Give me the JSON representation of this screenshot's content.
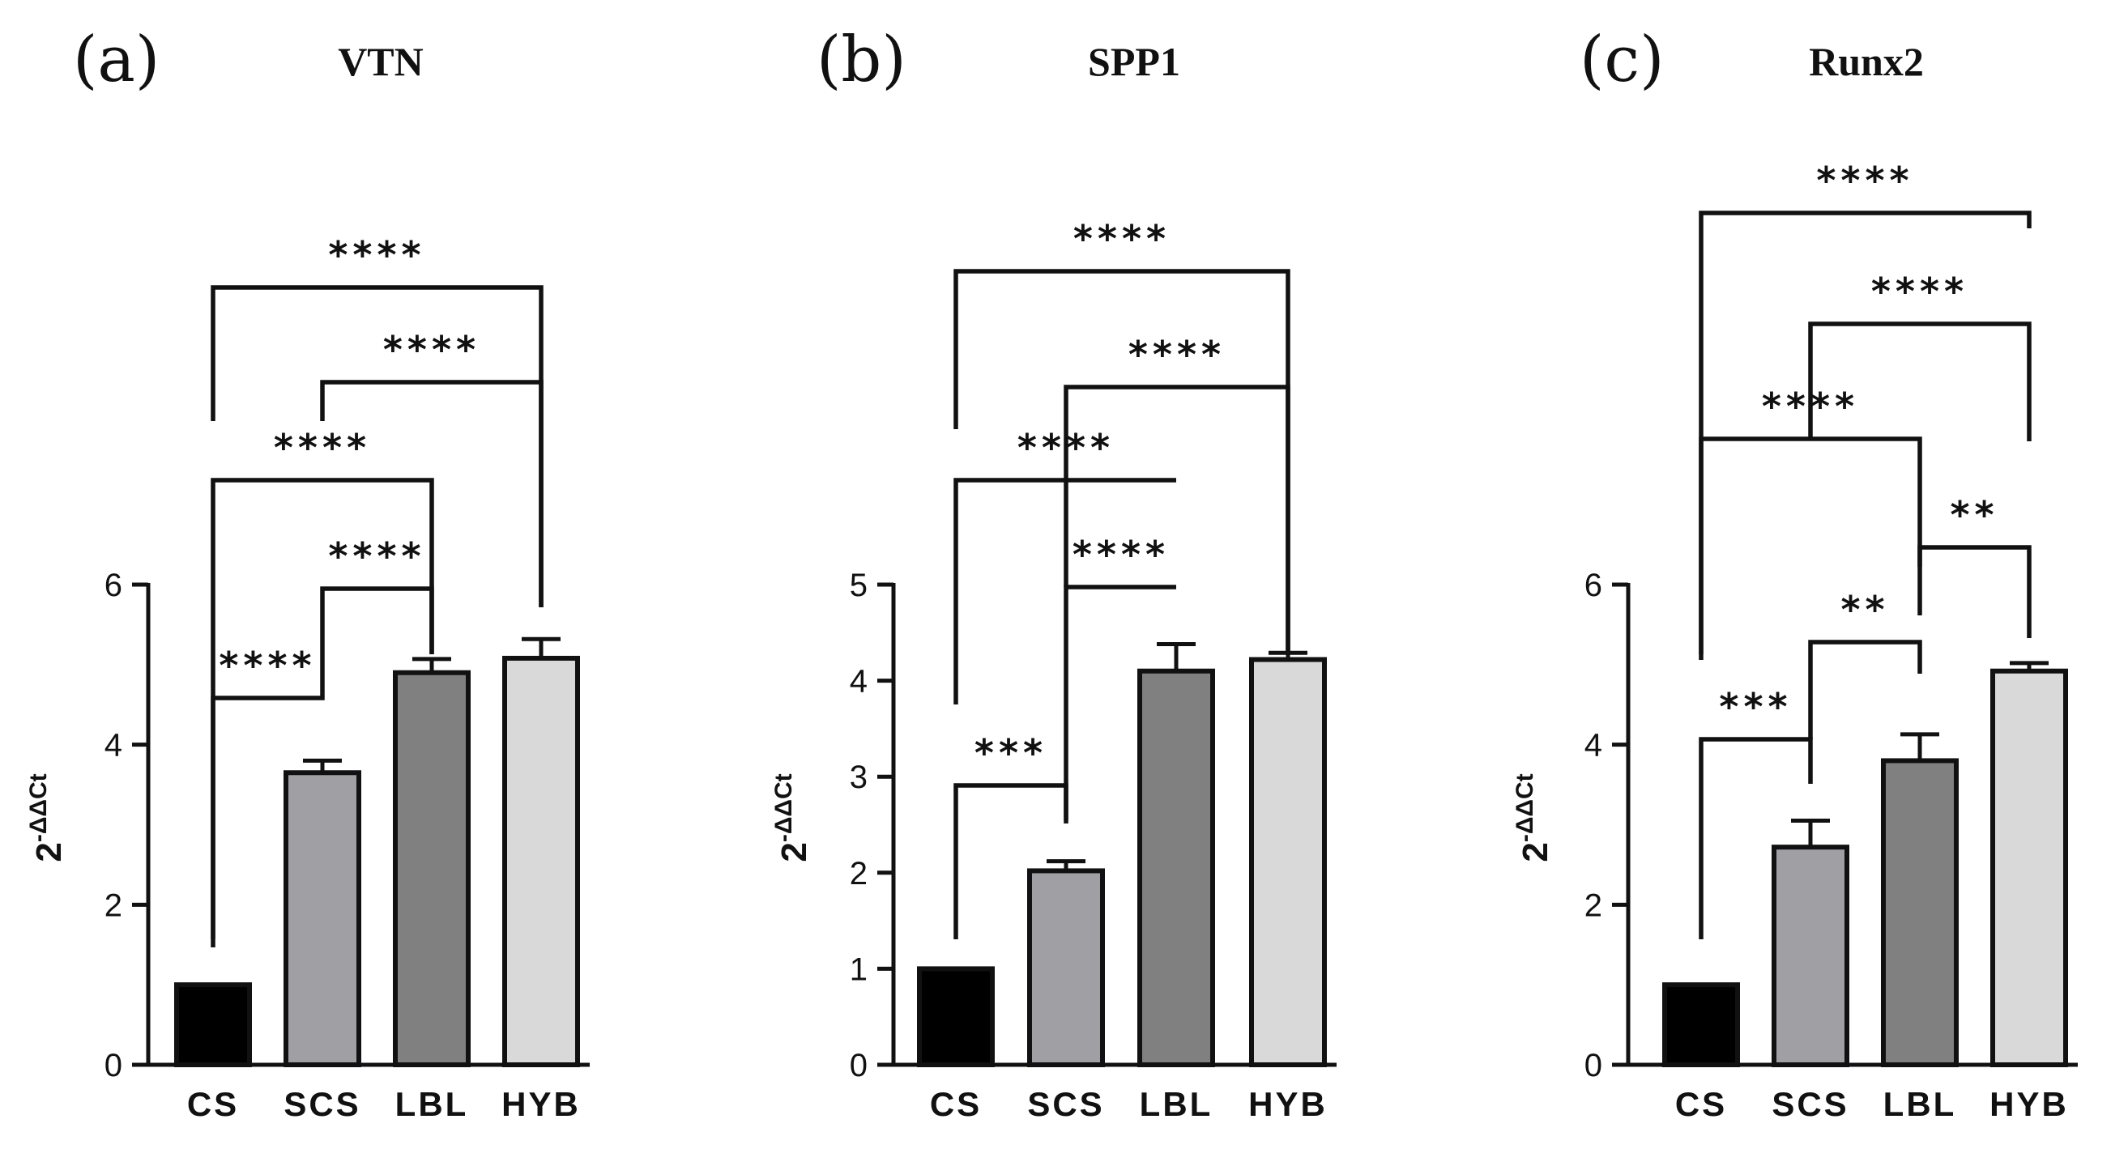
{
  "chart_data": [
    {
      "type": "bar",
      "panel_label": "(a)",
      "title": "VTN",
      "xlabel": "",
      "ylabel": "2-ΔΔCt",
      "ylabel_base": "2",
      "ylabel_exp": "-ΔΔCt",
      "categories": [
        "CS",
        "SCS",
        "LBL",
        "HYB"
      ],
      "values": [
        1.0,
        3.65,
        4.9,
        5.08
      ],
      "errors": [
        0,
        0.15,
        0.17,
        0.24
      ],
      "colors": [
        "#000000",
        "#a0a0a4",
        "#808080",
        "#d9d9d9"
      ],
      "ylim": [
        0,
        6
      ],
      "yticks": [
        0,
        2,
        4,
        6
      ],
      "ytick_labels": [
        "0",
        "2",
        "4",
        "6"
      ],
      "significance": [
        {
          "from": "CS",
          "to": "SCS",
          "label": "****"
        },
        {
          "from": "SCS",
          "to": "LBL",
          "label": "****"
        },
        {
          "from": "CS",
          "to": "LBL",
          "label": "****"
        },
        {
          "from": "SCS",
          "to": "HYB",
          "label": "****"
        },
        {
          "from": "CS",
          "to": "HYB",
          "label": "****"
        }
      ]
    },
    {
      "type": "bar",
      "panel_label": "(b)",
      "title": "SPP1",
      "xlabel": "",
      "ylabel": "2-ΔΔCt",
      "ylabel_base": "2",
      "ylabel_exp": "-ΔΔCt",
      "categories": [
        "CS",
        "SCS",
        "LBL",
        "HYB"
      ],
      "values": [
        1.0,
        2.02,
        4.1,
        4.22
      ],
      "errors": [
        0,
        0.1,
        0.28,
        0.07
      ],
      "colors": [
        "#000000",
        "#a0a0a4",
        "#808080",
        "#d9d9d9"
      ],
      "ylim": [
        0,
        5
      ],
      "yticks": [
        0,
        1,
        2,
        3,
        4,
        5
      ],
      "ytick_labels": [
        "0",
        "1",
        "2",
        "3",
        "4",
        "5"
      ],
      "significance": [
        {
          "from": "CS",
          "to": "SCS",
          "label": "***"
        },
        {
          "from": "SCS",
          "to": "LBL",
          "label": "****"
        },
        {
          "from": "CS",
          "to": "LBL",
          "label": "****"
        },
        {
          "from": "SCS",
          "to": "HYB",
          "label": "****"
        },
        {
          "from": "CS",
          "to": "HYB",
          "label": "****"
        }
      ]
    },
    {
      "type": "bar",
      "panel_label": "(c)",
      "title": "Runx2",
      "xlabel": "",
      "ylabel": "2-ΔΔCt",
      "ylabel_base": "2",
      "ylabel_exp": "-ΔΔCt",
      "categories": [
        "CS",
        "SCS",
        "LBL",
        "HYB"
      ],
      "values": [
        1.0,
        2.72,
        3.8,
        4.92
      ],
      "errors": [
        0,
        0.33,
        0.33,
        0.1
      ],
      "colors": [
        "#000000",
        "#a0a0a4",
        "#808080",
        "#d9d9d9"
      ],
      "ylim": [
        0,
        6
      ],
      "yticks": [
        0,
        2,
        4,
        6
      ],
      "ytick_labels": [
        "0",
        "2",
        "4",
        "6"
      ],
      "significance": [
        {
          "from": "CS",
          "to": "SCS",
          "label": "***"
        },
        {
          "from": "SCS",
          "to": "LBL",
          "label": "**"
        },
        {
          "from": "LBL",
          "to": "HYB",
          "label": "**"
        },
        {
          "from": "CS",
          "to": "LBL",
          "label": "****"
        },
        {
          "from": "SCS",
          "to": "HYB",
          "label": "****"
        },
        {
          "from": "CS",
          "to": "HYB",
          "label": "****"
        }
      ]
    }
  ]
}
